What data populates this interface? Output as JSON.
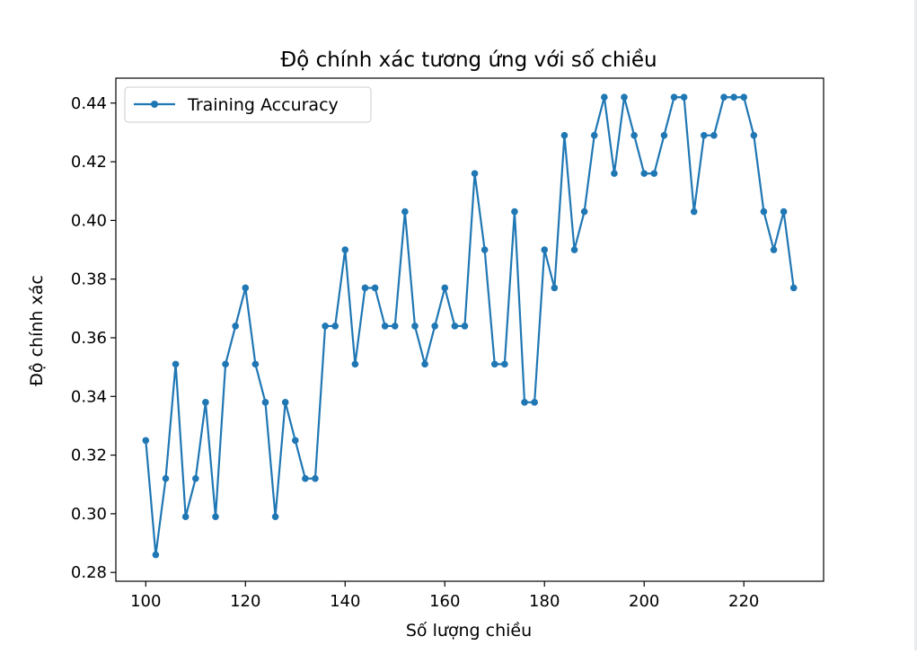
{
  "chart_data": {
    "type": "line",
    "title": "Độ chính xác tương ứng với số chiều",
    "xlabel": "Số lượng chiều",
    "ylabel": "Độ chính xác",
    "xlim": [
      94,
      236
    ],
    "ylim": [
      0.277,
      0.4485
    ],
    "xticks": [
      100,
      120,
      140,
      160,
      180,
      200,
      220
    ],
    "yticks": [
      0.28,
      0.3,
      0.32,
      0.34,
      0.36,
      0.38,
      0.4,
      0.42,
      0.44
    ],
    "xtick_labels": [
      "100",
      "120",
      "140",
      "160",
      "180",
      "200",
      "220"
    ],
    "ytick_labels": [
      "0.28",
      "0.30",
      "0.32",
      "0.34",
      "0.36",
      "0.38",
      "0.40",
      "0.42",
      "0.44"
    ],
    "legend": "top-left",
    "grid": false,
    "series": [
      {
        "name": "Training Accuracy",
        "color": "#1f77b4",
        "marker": "circle",
        "x": [
          100,
          102,
          104,
          106,
          108,
          110,
          112,
          114,
          116,
          118,
          120,
          122,
          124,
          126,
          128,
          130,
          132,
          134,
          136,
          138,
          140,
          142,
          144,
          146,
          148,
          150,
          152,
          154,
          156,
          158,
          160,
          162,
          164,
          166,
          168,
          170,
          172,
          174,
          176,
          178,
          180,
          182,
          184,
          186,
          188,
          190,
          192,
          194,
          196,
          198,
          200,
          202,
          204,
          206,
          208,
          210,
          212,
          214,
          216,
          218,
          220,
          222,
          224,
          226,
          228,
          230
        ],
        "y": [
          0.325,
          0.286,
          0.312,
          0.351,
          0.299,
          0.312,
          0.338,
          0.299,
          0.351,
          0.364,
          0.377,
          0.351,
          0.338,
          0.299,
          0.338,
          0.325,
          0.312,
          0.312,
          0.364,
          0.364,
          0.39,
          0.351,
          0.377,
          0.377,
          0.364,
          0.364,
          0.403,
          0.364,
          0.351,
          0.364,
          0.377,
          0.364,
          0.364,
          0.416,
          0.39,
          0.351,
          0.351,
          0.403,
          0.338,
          0.338,
          0.39,
          0.377,
          0.429,
          0.39,
          0.403,
          0.429,
          0.442,
          0.416,
          0.442,
          0.429,
          0.416,
          0.416,
          0.429,
          0.442,
          0.442,
          0.403,
          0.429,
          0.429,
          0.442,
          0.442,
          0.442,
          0.429,
          0.403,
          0.39,
          0.403,
          0.377
        ]
      }
    ]
  }
}
